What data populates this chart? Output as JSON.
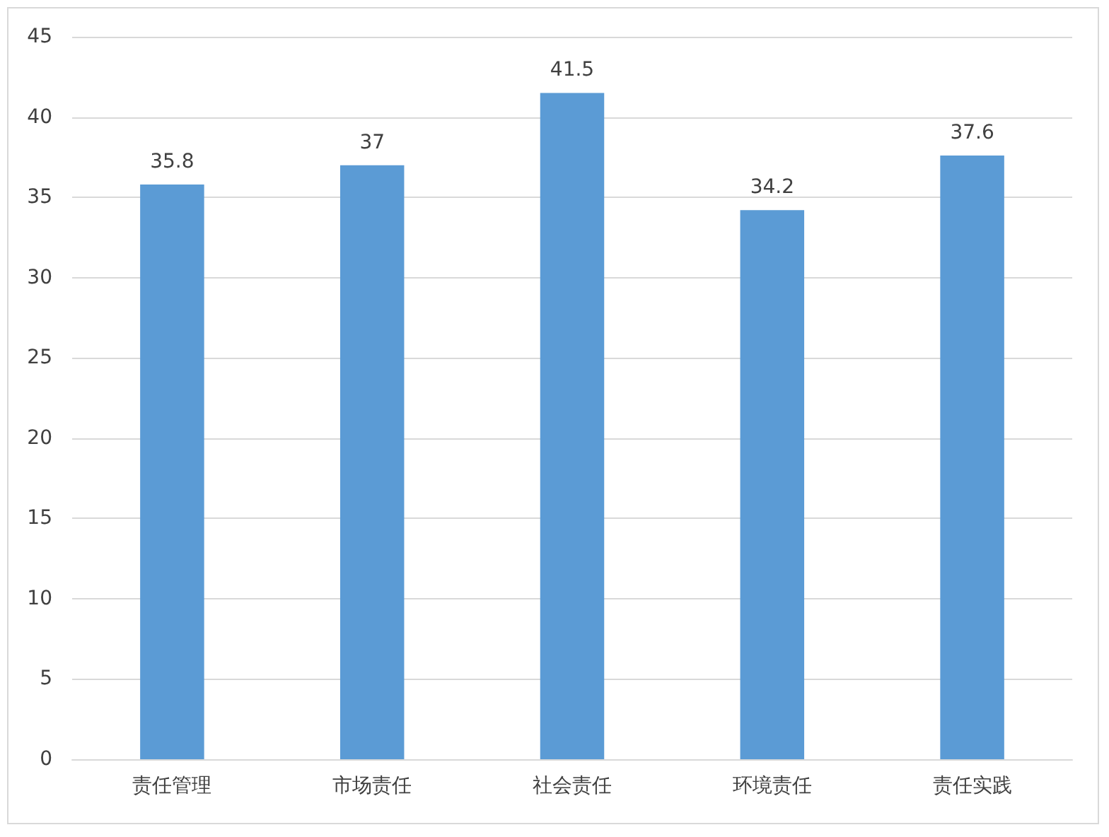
{
  "chart_data": {
    "type": "bar",
    "categories": [
      "责任管理",
      "市场责任",
      "社会责任",
      "环境责任",
      "责任实践"
    ],
    "values": [
      35.8,
      37,
      41.5,
      34.2,
      37.6
    ],
    "color": "#5b9bd5",
    "ylim": [
      0,
      45
    ],
    "yticks": [
      0,
      5,
      10,
      15,
      20,
      25,
      30,
      35,
      40,
      45
    ],
    "grid": "y",
    "data_labels": true
  }
}
